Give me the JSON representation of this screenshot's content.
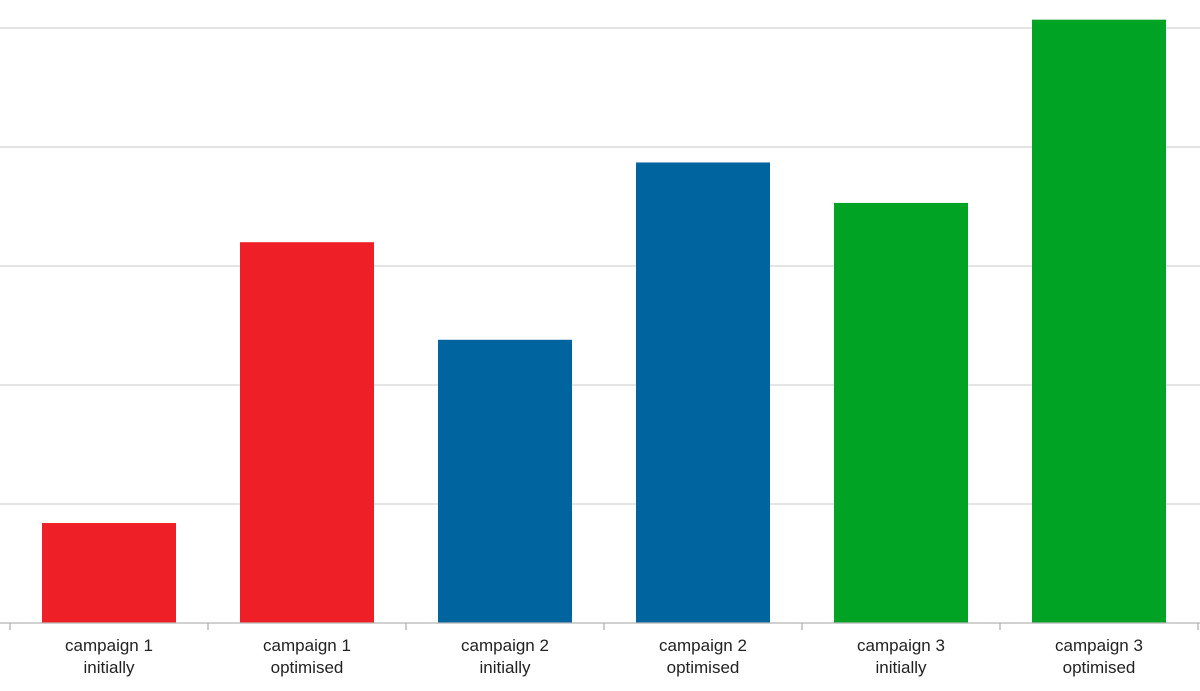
{
  "chart_data": {
    "type": "bar",
    "categories": [
      [
        "campaign 1",
        "initially"
      ],
      [
        "campaign 1",
        "optimised"
      ],
      [
        "campaign 2",
        "initially"
      ],
      [
        "campaign 2",
        "optimised"
      ],
      [
        "campaign 3",
        "initially"
      ],
      [
        "campaign 3",
        "optimised"
      ]
    ],
    "values": [
      0.84,
      3.2,
      2.38,
      3.87,
      3.53,
      5.07
    ],
    "bar_colors": [
      "#ee1f26",
      "#ee1f26",
      "#00659f",
      "#00659f",
      "#00a323",
      "#00a323"
    ],
    "ylim": [
      0,
      5.2
    ],
    "y_gridlines": [
      1,
      2,
      3,
      4,
      5
    ],
    "y_tick_labels_shown": false,
    "grid": true,
    "legend": "none",
    "title": "",
    "xlabel": "",
    "ylabel": ""
  }
}
